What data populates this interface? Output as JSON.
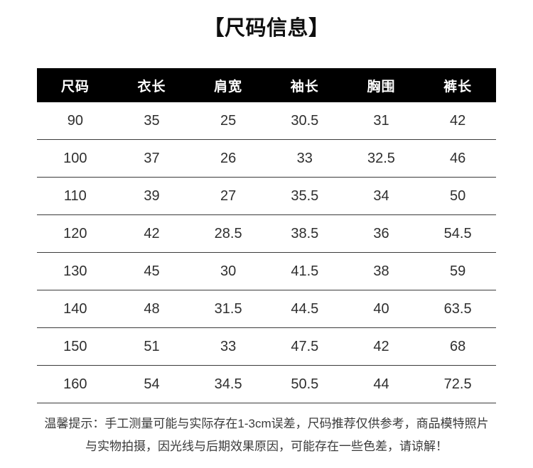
{
  "page": {
    "title": "【尺码信息】"
  },
  "table": {
    "headers": [
      "尺码",
      "衣长",
      "肩宽",
      "袖长",
      "胸围",
      "裤长"
    ],
    "rows": [
      [
        "90",
        "35",
        "25",
        "30.5",
        "31",
        "42"
      ],
      [
        "100",
        "37",
        "26",
        "33",
        "32.5",
        "46"
      ],
      [
        "110",
        "39",
        "27",
        "35.5",
        "34",
        "50"
      ],
      [
        "120",
        "42",
        "28.5",
        "38.5",
        "36",
        "54.5"
      ],
      [
        "130",
        "45",
        "30",
        "41.5",
        "38",
        "59"
      ],
      [
        "140",
        "48",
        "31.5",
        "44.5",
        "40",
        "63.5"
      ],
      [
        "150",
        "51",
        "33",
        "47.5",
        "42",
        "68"
      ],
      [
        "160",
        "54",
        "34.5",
        "50.5",
        "44",
        "72.5"
      ]
    ]
  },
  "note": {
    "line1": "温馨提示：手工测量可能与实际存在1-3cm误差，尺码推荐仅供参考，商品模特照片",
    "line2": "与实物拍摄，因光线与后期效果原因，可能存在一些色差，请谅解！"
  },
  "colors": {
    "header_bg": "#000000",
    "header_text": "#ffffff",
    "body_text": "#2f2f2f",
    "divider": "#3b3b3b",
    "note_text": "#3a3a3a",
    "background": "#ffffff"
  }
}
